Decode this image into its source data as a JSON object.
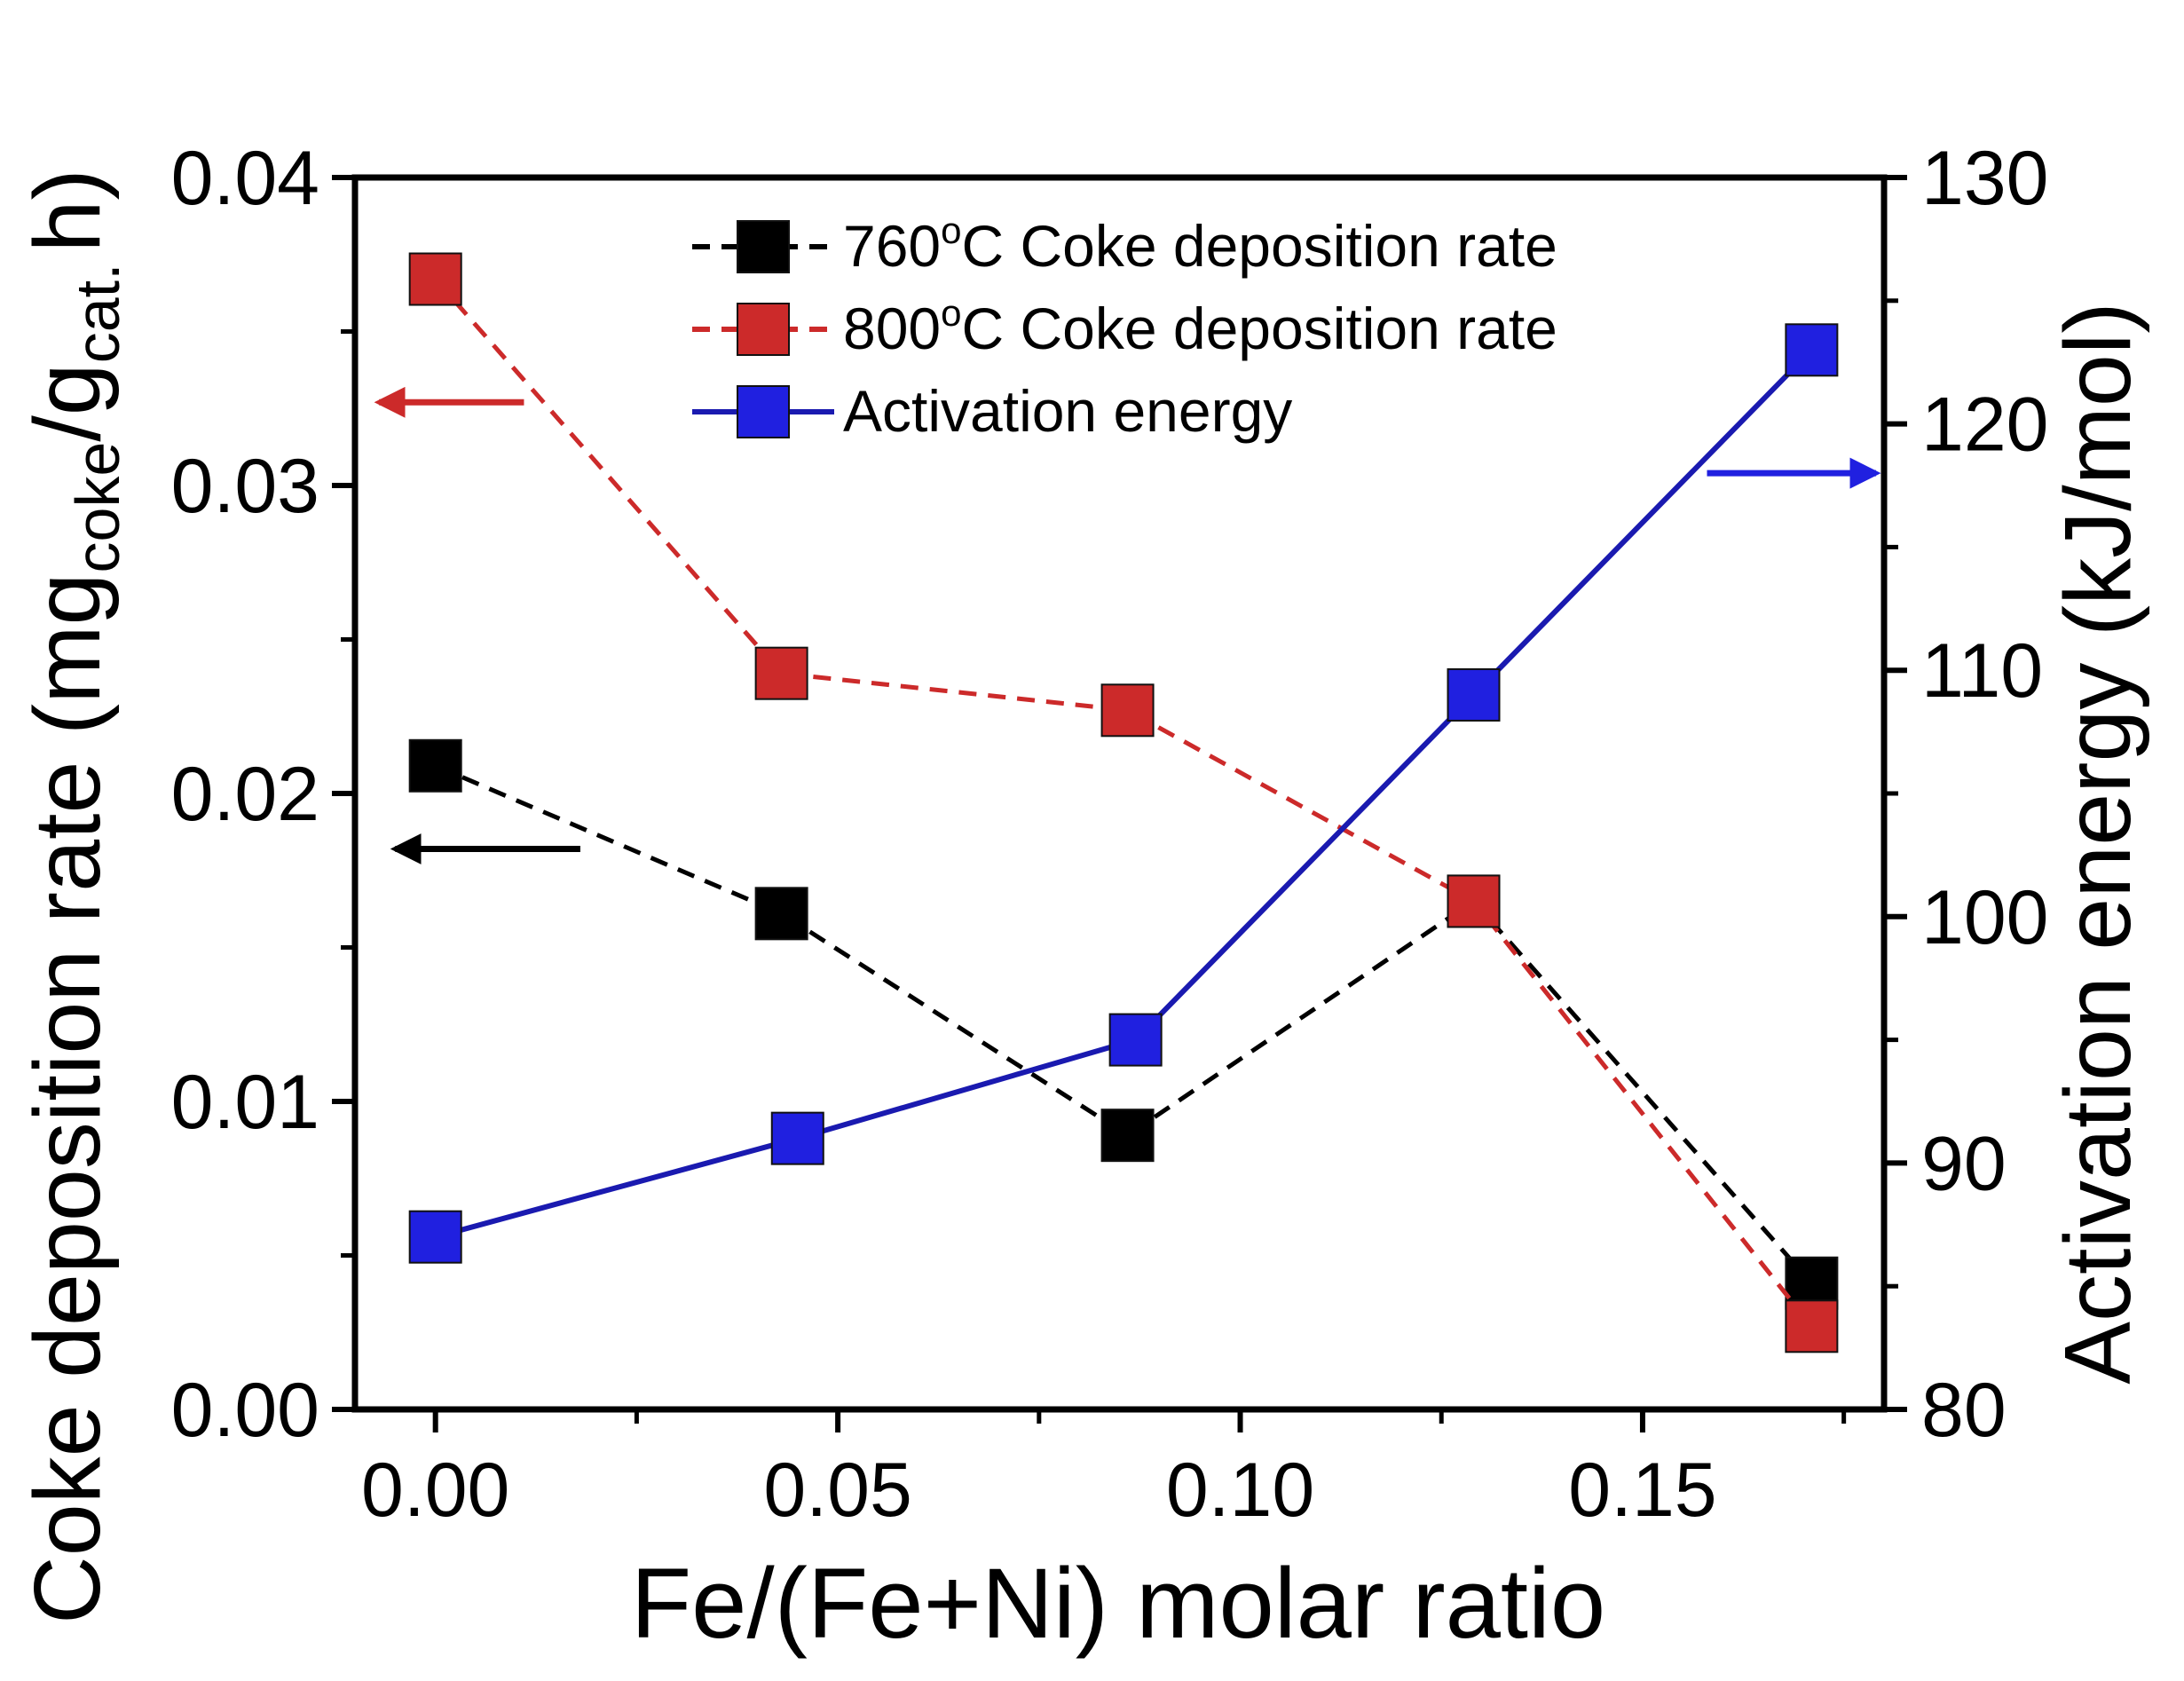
{
  "chart_data": {
    "type": "line",
    "xlabel": "Fe/(Fe+Ni) molar ratio",
    "ylabel_left": {
      "main": "Coke deposition rate (mg",
      "sub1": "coke",
      "slash": "/g",
      "sub2": "cat.",
      "tail": "h)"
    },
    "ylabel_right": "Activation energy (kJ/mol)",
    "xlim": [
      -0.01,
      0.18
    ],
    "ylim_left": [
      0,
      0.04
    ],
    "ylim_right": [
      80,
      130
    ],
    "x_ticks": [
      0,
      0.05,
      0.1,
      0.15
    ],
    "x_tick_labels": [
      "0.00",
      "0.05",
      "0.10",
      "0.15"
    ],
    "y_left_ticks": [
      0,
      0.01,
      0.02,
      0.03,
      0.04
    ],
    "y_left_tick_labels": [
      "0.00",
      "0.01",
      "0.02",
      "0.03",
      "0.04"
    ],
    "y_right_ticks": [
      80,
      90,
      100,
      110,
      120,
      130
    ],
    "y_right_tick_labels": [
      "80",
      "90",
      "100",
      "110",
      "120",
      "130"
    ],
    "series": [
      {
        "name": "760°C Coke deposition rate",
        "legend_prefix": "760",
        "legend_suffix": "C Coke deposition rate",
        "axis": "left",
        "color": "#000000",
        "line_style": "dashed",
        "x": [
          0.0,
          0.043,
          0.086,
          0.129,
          0.171
        ],
        "y": [
          0.0209,
          0.0161,
          0.0089,
          0.0165,
          0.0041
        ]
      },
      {
        "name": "800°C Coke deposition rate",
        "legend_prefix": "800",
        "legend_suffix": "C Coke deposition rate",
        "axis": "left",
        "color": "#cc2a2a",
        "line_style": "dashed",
        "x": [
          0.0,
          0.043,
          0.086,
          0.129,
          0.171
        ],
        "y": [
          0.0367,
          0.0239,
          0.0227,
          0.0165,
          0.0027
        ]
      },
      {
        "name": "Activation energy",
        "axis": "right",
        "color": "#2020e0",
        "line_color": "#1a1ab0",
        "line_style": "solid",
        "x": [
          0.0,
          0.045,
          0.087,
          0.129,
          0.171
        ],
        "y": [
          87,
          91,
          95,
          109,
          123
        ]
      }
    ],
    "annotations": [
      {
        "type": "arrow",
        "direction": "left",
        "color": "#cc2a2a",
        "points_to": "left-axis",
        "from": [
          0.011,
          0.0327
        ],
        "to": [
          -0.007,
          0.0327
        ]
      },
      {
        "type": "arrow",
        "direction": "left",
        "color": "#000000",
        "points_to": "left-axis",
        "from": [
          0.018,
          0.0182
        ],
        "to": [
          -0.005,
          0.0182
        ]
      },
      {
        "type": "arrow",
        "direction": "right",
        "color": "#2020e0",
        "points_to": "right-axis",
        "axis": "right",
        "from": [
          0.158,
          118
        ],
        "to": [
          0.179,
          118
        ]
      }
    ],
    "legend_position": "top-center"
  }
}
